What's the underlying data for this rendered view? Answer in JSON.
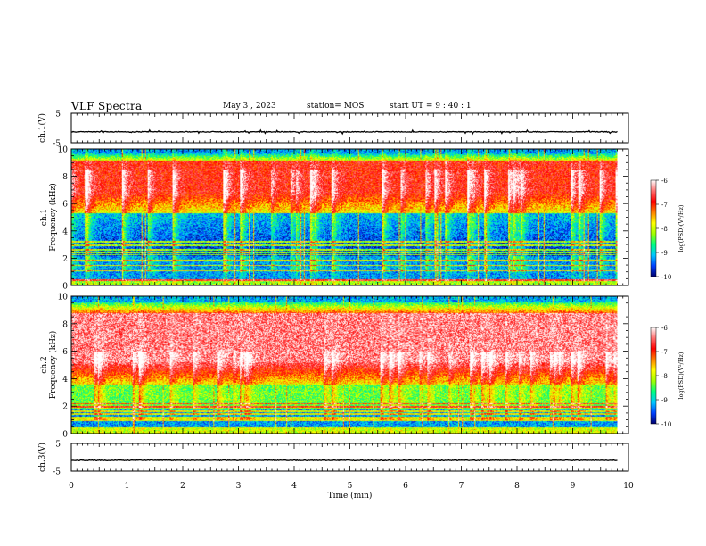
{
  "header": {
    "title": "VLF Spectra",
    "date": "May 3 , 2023",
    "station": "station= MOS",
    "start_time": "start UT = 9 : 40 : 1"
  },
  "chart_data": [
    {
      "type": "line",
      "name": "ch1-waveform",
      "ylabel": "ch.1(V)",
      "ylim": [
        -5,
        5
      ],
      "y_ticks": [
        "5",
        "-5"
      ],
      "x_range_min": [
        0,
        10
      ],
      "data_extent_min": [
        0,
        9.8
      ],
      "level_v": -1.3
    },
    {
      "type": "heatmap",
      "name": "ch1-spectrogram",
      "ylabel": "ch.1\nFrequency (kHz)",
      "ylim_khz": [
        0,
        10
      ],
      "y_ticks": [
        "0",
        "2",
        "4",
        "6",
        "8",
        "10"
      ],
      "x_range_min": [
        0,
        10
      ],
      "data_extent_min": [
        0,
        9.8
      ],
      "colorbar": {
        "label": "log(PSD)(V²/Hz)",
        "range": [
          -10,
          -6
        ],
        "ticks": [
          "-6",
          "-7",
          "-8",
          "-9",
          "-10"
        ],
        "colors": [
          "#00006e",
          "#0040ff",
          "#00c8ff",
          "#00ff80",
          "#a0ff00",
          "#ffff00",
          "#ff8000",
          "#ff0000",
          "#ff7070",
          "#ffffff"
        ]
      }
    },
    {
      "type": "heatmap",
      "name": "ch2-spectrogram",
      "ylabel": "ch.2\nFrequency (kHz)",
      "ylim_khz": [
        0,
        10
      ],
      "y_ticks": [
        "0",
        "2",
        "4",
        "6",
        "8",
        "10"
      ],
      "x_range_min": [
        0,
        10
      ],
      "data_extent_min": [
        0,
        9.8
      ],
      "colorbar": {
        "label": "log(PSD)(V²/Hz)",
        "range": [
          -10,
          -6
        ],
        "ticks": [
          "-6",
          "-7",
          "-8",
          "-9",
          "-10"
        ],
        "colors": [
          "#00006e",
          "#0040ff",
          "#00c8ff",
          "#00ff80",
          "#a0ff00",
          "#ffff00",
          "#ff8000",
          "#ff0000",
          "#ff7070",
          "#ffffff"
        ]
      }
    },
    {
      "type": "line",
      "name": "ch3-waveform",
      "ylabel": "ch.3(V)",
      "ylim": [
        -5,
        5
      ],
      "y_ticks": [
        "5",
        "-5"
      ],
      "x_range_min": [
        0,
        10
      ],
      "data_extent_min": [
        0,
        9.8
      ],
      "level_v": -1.1
    }
  ],
  "x_axis": {
    "label": "Time (min)",
    "ticks": [
      "0",
      "1",
      "2",
      "3",
      "4",
      "5",
      "6",
      "7",
      "8",
      "9",
      "10"
    ]
  }
}
